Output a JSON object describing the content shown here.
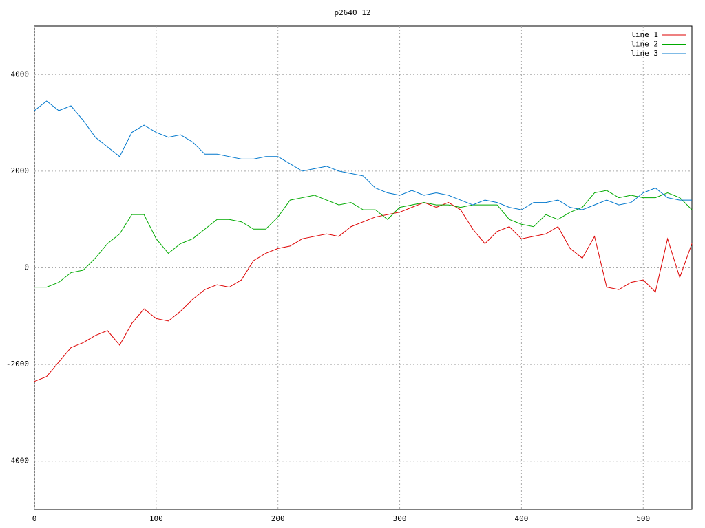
{
  "chart_data": {
    "type": "line",
    "title": "p2640_12",
    "x": [
      0,
      10,
      20,
      30,
      40,
      50,
      60,
      70,
      80,
      90,
      100,
      110,
      120,
      130,
      140,
      150,
      160,
      170,
      180,
      190,
      200,
      210,
      220,
      230,
      240,
      250,
      260,
      270,
      280,
      290,
      300,
      310,
      320,
      330,
      340,
      350,
      360,
      370,
      380,
      390,
      400,
      410,
      420,
      430,
      440,
      450,
      460,
      470,
      480,
      490,
      500,
      510,
      520,
      530,
      540
    ],
    "series": [
      {
        "name": "line 1",
        "color": "#dd0000",
        "values": [
          -2350,
          -2250,
          -1950,
          -1650,
          -1550,
          -1400,
          -1300,
          -1600,
          -1150,
          -850,
          -1050,
          -1100,
          -900,
          -650,
          -450,
          -350,
          -400,
          -250,
          150,
          300,
          400,
          450,
          600,
          650,
          700,
          650,
          850,
          950,
          1050,
          1100,
          1150,
          1250,
          1350,
          1250,
          1350,
          1200,
          800,
          500,
          750,
          850,
          600,
          650,
          700,
          850,
          400,
          200,
          650,
          -400,
          -450,
          -300,
          -250,
          -500,
          600,
          -200,
          500
        ]
      },
      {
        "name": "line 2",
        "color": "#00aa00",
        "values": [
          -400,
          -400,
          -300,
          -100,
          -50,
          200,
          500,
          700,
          1100,
          1100,
          600,
          300,
          500,
          600,
          800,
          1000,
          1000,
          950,
          800,
          800,
          1050,
          1400,
          1450,
          1500,
          1400,
          1300,
          1350,
          1200,
          1200,
          1000,
          1250,
          1300,
          1350,
          1300,
          1300,
          1250,
          1300,
          1300,
          1300,
          1000,
          900,
          850,
          1100,
          1000,
          1150,
          1250,
          1550,
          1600,
          1450,
          1500,
          1450,
          1450,
          1550,
          1450,
          1200
        ]
      },
      {
        "name": "line 3",
        "color": "#0077cc",
        "values": [
          3250,
          3450,
          3250,
          3350,
          3050,
          2700,
          2500,
          2300,
          2800,
          2950,
          2800,
          2700,
          2750,
          2600,
          2350,
          2350,
          2300,
          2250,
          2250,
          2300,
          2300,
          2150,
          2000,
          2050,
          2100,
          2000,
          1950,
          1900,
          1650,
          1550,
          1500,
          1600,
          1500,
          1550,
          1500,
          1400,
          1300,
          1400,
          1350,
          1250,
          1200,
          1350,
          1350,
          1400,
          1250,
          1200,
          1300,
          1400,
          1300,
          1350,
          1550,
          1650,
          1450,
          1400,
          1400
        ]
      }
    ],
    "xlim": [
      0,
      540
    ],
    "ylim": [
      -5000,
      5000
    ],
    "xticks": [
      0,
      100,
      200,
      300,
      400,
      500
    ],
    "yticks": [
      -4000,
      -2000,
      0,
      2000,
      4000
    ],
    "grid": true,
    "legend": "top-right"
  }
}
